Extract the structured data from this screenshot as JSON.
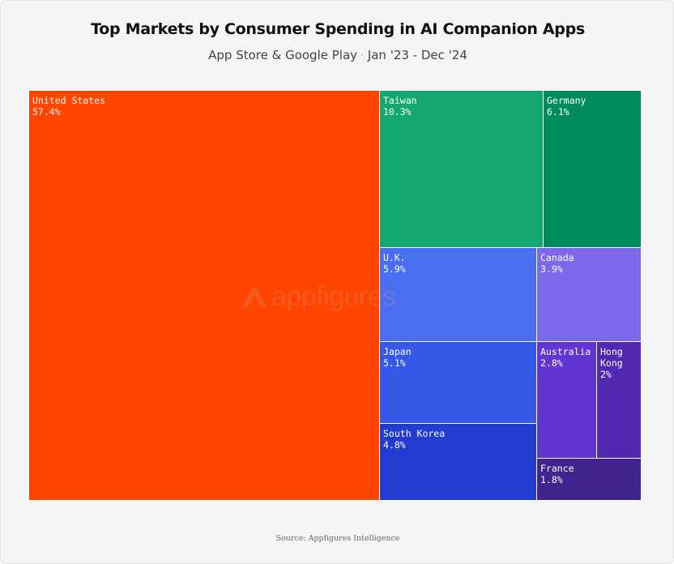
{
  "chart_data": {
    "type": "treemap",
    "title": "Top Markets by Consumer Spending in AI Companion Apps",
    "subtitle_left": "App Store & Google Play",
    "subtitle_right": "Jan '23 - Dec '24",
    "source": "Source: Appfigures Intelligence",
    "watermark": "appfigures",
    "unit": "%",
    "items": [
      {
        "label": "United States",
        "value": 57.4,
        "value_text": "57.4%",
        "color": "#ff4500"
      },
      {
        "label": "Taiwan",
        "value": 10.3,
        "value_text": "10.3%",
        "color": "#14a870"
      },
      {
        "label": "Germany",
        "value": 6.1,
        "value_text": "6.1%",
        "color": "#008c5c"
      },
      {
        "label": "U.K.",
        "value": 5.9,
        "value_text": "5.9%",
        "color": "#4a6ef0"
      },
      {
        "label": "Canada",
        "value": 3.9,
        "value_text": "3.9%",
        "color": "#7c68eb"
      },
      {
        "label": "Japan",
        "value": 5.1,
        "value_text": "5.1%",
        "color": "#3558e6"
      },
      {
        "label": "Australia",
        "value": 2.8,
        "value_text": "2.8%",
        "color": "#6135d1"
      },
      {
        "label": "Hong Kong",
        "value": 2.0,
        "value_text": "2%",
        "color": "#5029b0"
      },
      {
        "label": "South Korea",
        "value": 4.8,
        "value_text": "4.8%",
        "color": "#233bd0"
      },
      {
        "label": "France",
        "value": 1.8,
        "value_text": "1.8%",
        "color": "#41248d"
      }
    ]
  }
}
